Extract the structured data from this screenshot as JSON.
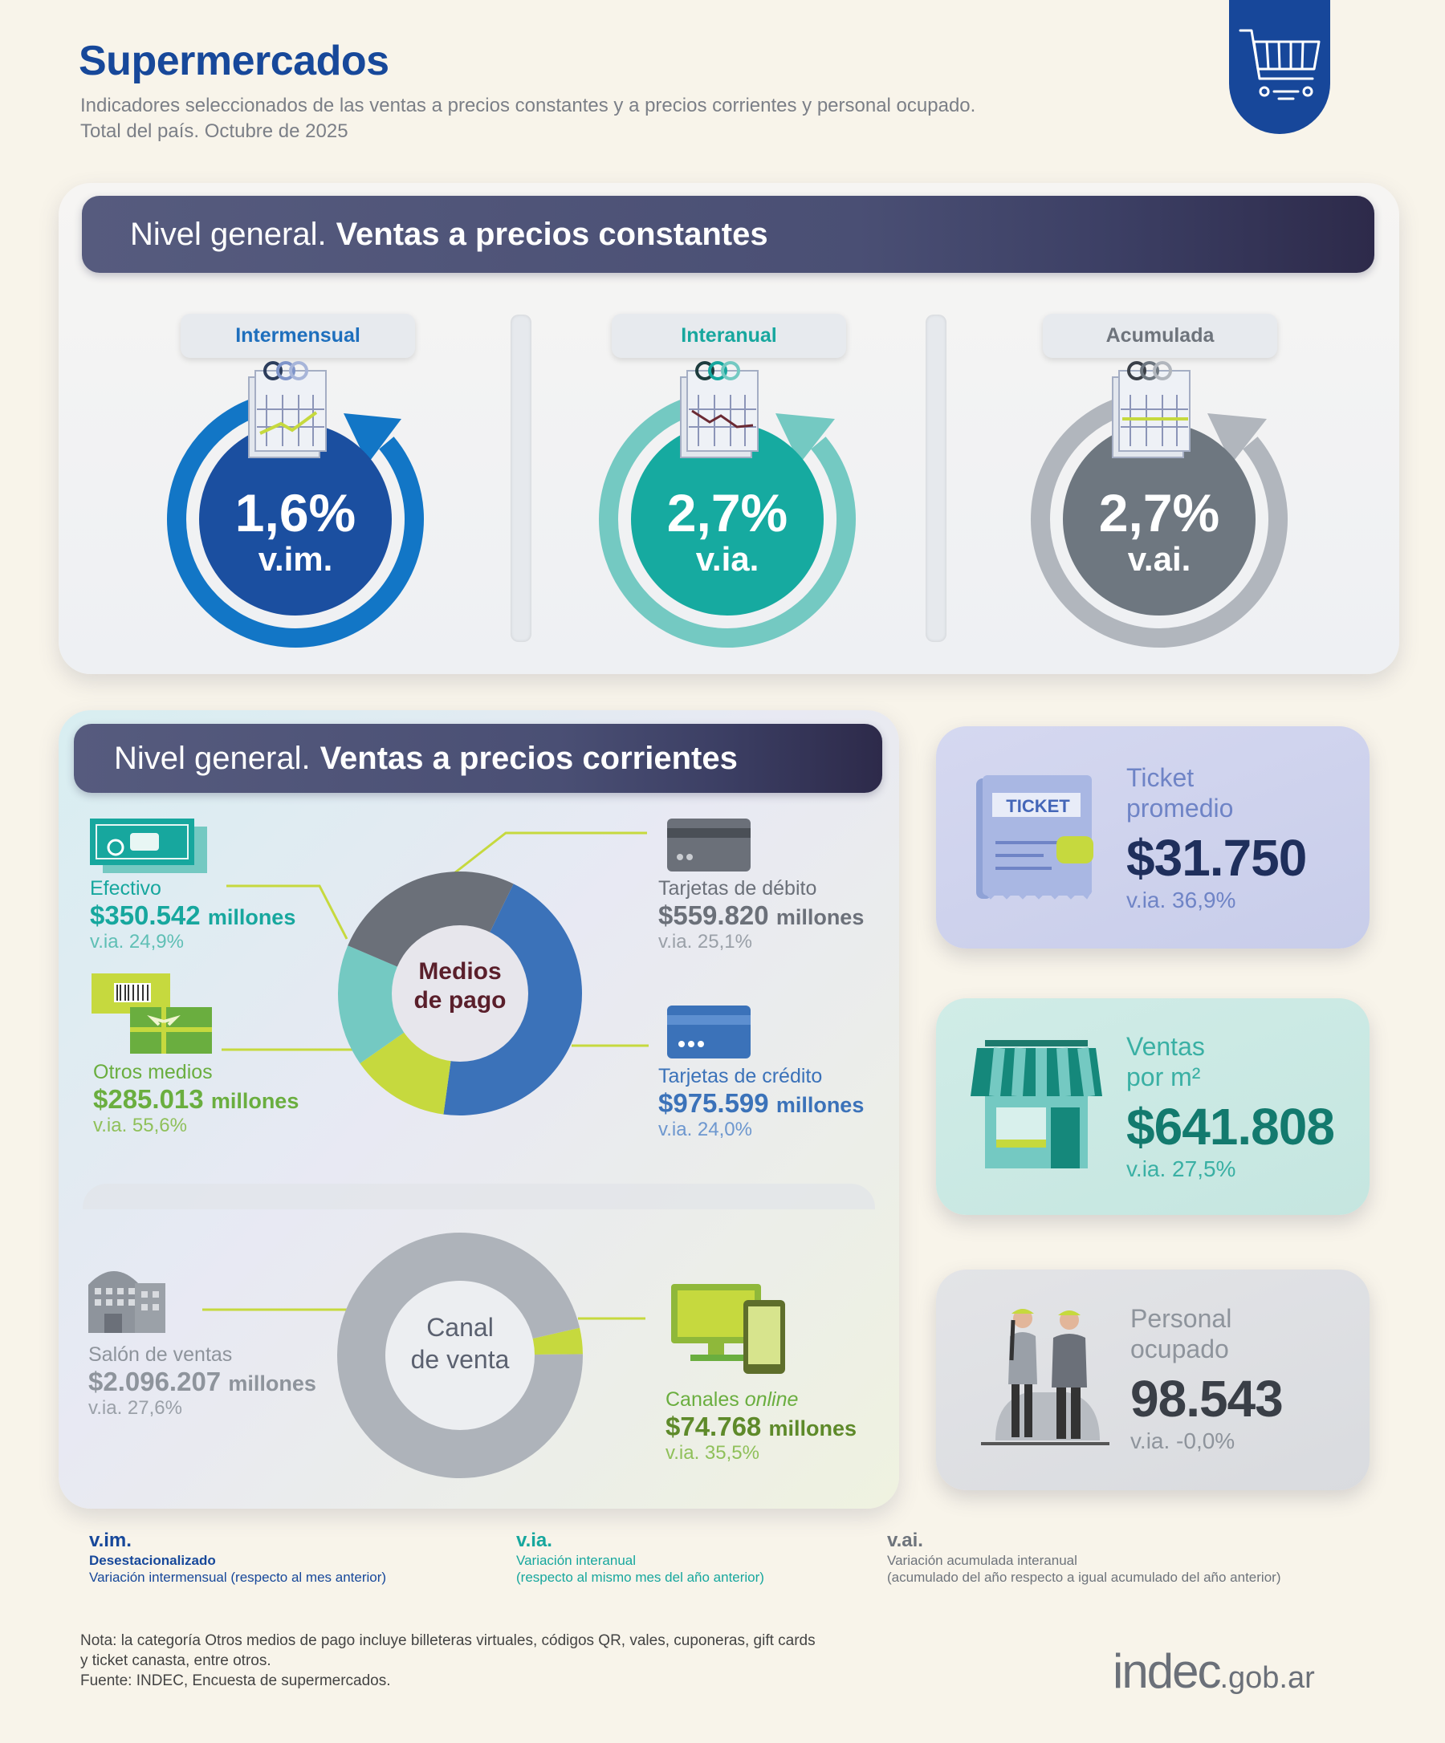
{
  "header": {
    "title": "Supermercados",
    "subtitle_line1": "Indicadores seleccionados de las ventas a precios constantes y a precios corrientes y personal ocupado.",
    "subtitle_line2": "Total del país. Octubre de 2025"
  },
  "constantes": {
    "banner_prefix": "Nivel general.",
    "banner_bold": "Ventas a precios constantes",
    "gauges": [
      {
        "label": "Intermensual",
        "value": "1,6%",
        "unit": "v.im.",
        "color": "#1b4fa0",
        "ring": "#1276c6",
        "label_color": "#1e6fbd"
      },
      {
        "label": "Interanual",
        "value": "2,7%",
        "unit": "v.ia.",
        "color": "#16aaa0",
        "ring": "#74c9c2",
        "label_color": "#17a79e"
      },
      {
        "label": "Acumulada",
        "value": "2,7%",
        "unit": "v.ai.",
        "color": "#6e7780",
        "ring": "#b1b6bd",
        "label_color": "#6e747c"
      }
    ]
  },
  "corrientes": {
    "banner_prefix": "Nivel general.",
    "banner_bold": "Ventas a precios corrientes",
    "medios": {
      "center_line1": "Medios",
      "center_line2": "de pago",
      "efectivo": {
        "label": "Efectivo",
        "amount": "$350.542",
        "unit": "millones",
        "via": "v.ia. 24,9%"
      },
      "otros": {
        "label": "Otros medios",
        "amount": "$285.013",
        "unit": "millones",
        "via": "v.ia. 55,6%"
      },
      "debito": {
        "label": "Tarjetas de débito",
        "amount": "$559.820",
        "unit": "millones",
        "via": "v.ia. 25,1%"
      },
      "credito": {
        "label": "Tarjetas de crédito",
        "amount": "$975.599",
        "unit": "millones",
        "via": "v.ia. 24,0%"
      }
    },
    "canal": {
      "center_line1": "Canal",
      "center_line2": "de venta",
      "salon": {
        "label": "Salón de ventas",
        "amount": "$2.096.207",
        "unit": "millones",
        "via": "v.ia. 27,6%"
      },
      "online": {
        "label_prefix": "Canales",
        "label_italic": "online",
        "amount": "$74.768",
        "unit": "millones",
        "via": "v.ia. 35,5%"
      }
    }
  },
  "cards": {
    "ticket": {
      "badge": "TICKET",
      "title_line1": "Ticket",
      "title_line2": "promedio",
      "value": "$31.750",
      "via": "v.ia. 36,9%"
    },
    "ventas_m2": {
      "title_line1": "Ventas",
      "title_line2": "por m²",
      "value": "$641.808",
      "via": "v.ia. 27,5%"
    },
    "personal": {
      "title_line1": "Personal",
      "title_line2": "ocupado",
      "value": "98.543",
      "via": "v.ia. -0,0%"
    }
  },
  "legend": [
    {
      "abbr": "v.im.",
      "line1": "Desestacionalizado",
      "line2": "Variación intermensual (respecto al mes anterior)",
      "color": "#17489a"
    },
    {
      "abbr": "v.ia.",
      "line1": "Variación interanual",
      "line2": "(respecto al mismo mes del año anterior)",
      "color": "#17a79e"
    },
    {
      "abbr": "v.ai.",
      "line1": "Variación acumulada interanual",
      "line2": "(acumulado del año respecto a igual acumulado del año anterior)",
      "color": "#6e747c"
    }
  ],
  "footer": {
    "note_line1": "Nota: la categoría Otros medios de pago incluye billeteras virtuales, códigos QR, vales, cuponeras, gift cards",
    "note_line2": "y ticket canasta, entre otros.",
    "source": "Fuente: INDEC, Encuesta de supermercados.",
    "logo_main": "indec",
    "logo_suffix": ".gob.ar"
  },
  "chart_data": [
    {
      "type": "pie",
      "center": "Medios de pago",
      "categories": [
        "Tarjetas de crédito",
        "Otros medios",
        "Efectivo",
        "Tarjetas de débito"
      ],
      "values": [
        975599,
        285013,
        350542,
        559820
      ],
      "unit": "millones",
      "colors": [
        "#3b72b9",
        "#c6d93e",
        "#74c9c2",
        "#6b7079"
      ]
    },
    {
      "type": "pie",
      "center": "Canal de venta",
      "categories": [
        "Canales online",
        "Salón de ventas"
      ],
      "values": [
        74768,
        2096207
      ],
      "unit": "millones",
      "colors": [
        "#c6d93e",
        "#aeb3ba"
      ]
    }
  ]
}
